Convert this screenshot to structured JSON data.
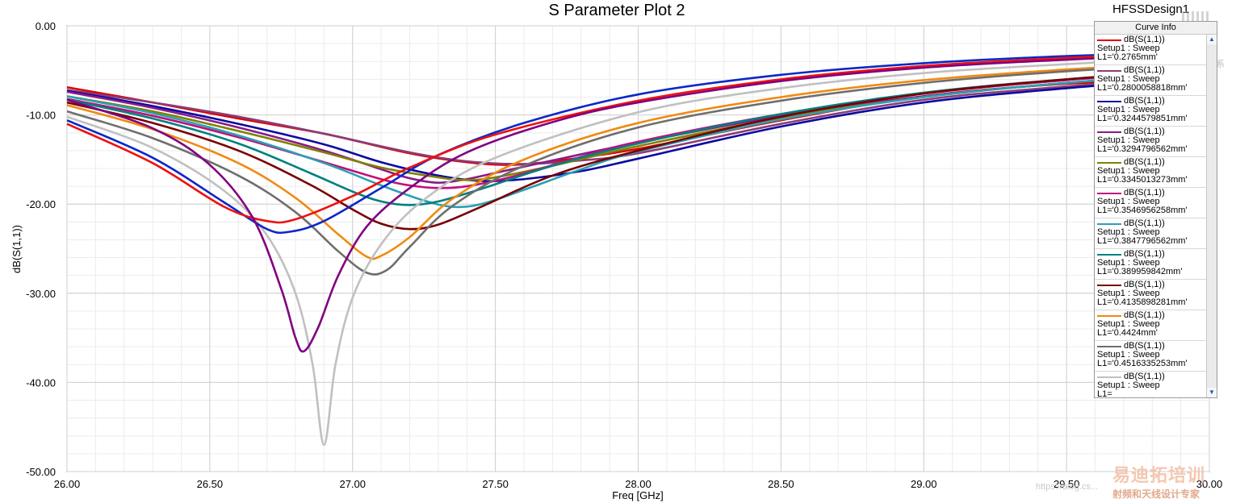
{
  "app": {
    "design_name": "HFSSDesign1"
  },
  "legend": {
    "header": "Curve Info",
    "scroll_up": "▲",
    "scroll_down": "▼"
  },
  "watermarks": {
    "brand_cn": "易迪拓培训",
    "subtitle_cn": "射频和天线设计专家",
    "url": "https://blog.cs...",
    "wechat": "微 信 联 系"
  },
  "chart_data": {
    "type": "line",
    "title": "S Parameter Plot 2",
    "xlabel": "Freq [GHz]",
    "ylabel": "dB(S(1,1))",
    "xlim": [
      26.0,
      30.0
    ],
    "ylim": [
      -50.0,
      0.0
    ],
    "x_ticks": [
      "26.00",
      "26.50",
      "27.00",
      "27.50",
      "28.00",
      "28.50",
      "29.00",
      "29.50",
      "30.00"
    ],
    "y_ticks": [
      "0.00",
      "-10.00",
      "-20.00",
      "-30.00",
      "-40.00",
      "-50.00"
    ],
    "x_tick_values": [
      26.0,
      26.5,
      27.0,
      27.5,
      28.0,
      28.5,
      29.0,
      29.5,
      30.0
    ],
    "y_tick_values": [
      0,
      -10,
      -20,
      -30,
      -40,
      -50
    ],
    "grid": true,
    "legend_position": "top-right",
    "series": [
      {
        "name": "dB(S(1,1))",
        "setup": "Setup1 : Sweep",
        "param": "L1='0.2765mm'",
        "color": "#e00000",
        "points": [
          [
            26.0,
            -6.9
          ],
          [
            26.3,
            -8.6
          ],
          [
            26.6,
            -10.4
          ],
          [
            26.9,
            -12.1
          ],
          [
            27.2,
            -14.3
          ],
          [
            27.4,
            -15.3
          ],
          [
            27.55,
            -15.6
          ],
          [
            27.7,
            -15.2
          ],
          [
            28.0,
            -13.8
          ],
          [
            28.5,
            -10.6
          ],
          [
            29.0,
            -7.9
          ],
          [
            29.5,
            -6.5
          ],
          [
            30.0,
            -5.9
          ]
        ]
      },
      {
        "name": "dB(S(1,1))",
        "setup": "Setup1 : Sweep",
        "param": "L1='0.2800058818mm'",
        "color": "#8c3c78",
        "points": [
          [
            26.0,
            -7.2
          ],
          [
            26.3,
            -8.6
          ],
          [
            26.6,
            -10.2
          ],
          [
            26.9,
            -12.1
          ],
          [
            27.2,
            -14.2
          ],
          [
            27.4,
            -15.2
          ],
          [
            27.6,
            -15.5
          ],
          [
            27.8,
            -15.1
          ],
          [
            28.0,
            -14.3
          ],
          [
            28.5,
            -11.0
          ],
          [
            29.0,
            -8.3
          ],
          [
            29.5,
            -6.8
          ],
          [
            30.0,
            -5.6
          ]
        ]
      },
      {
        "name": "dB(S(1,1))",
        "setup": "Setup1 : Sweep",
        "param": "L1='0.3244579851mm'",
        "color": "#0a0aa0",
        "points": [
          [
            26.0,
            -7.3
          ],
          [
            26.3,
            -9.0
          ],
          [
            26.6,
            -11.0
          ],
          [
            26.9,
            -13.3
          ],
          [
            27.1,
            -15.3
          ],
          [
            27.3,
            -16.8
          ],
          [
            27.45,
            -17.4
          ],
          [
            27.6,
            -17.2
          ],
          [
            27.8,
            -16.3
          ],
          [
            28.0,
            -14.9
          ],
          [
            28.5,
            -11.3
          ],
          [
            29.0,
            -8.6
          ],
          [
            29.5,
            -7.0
          ],
          [
            30.0,
            -5.8
          ]
        ]
      },
      {
        "name": "dB(S(1,1))",
        "setup": "Setup1 : Sweep",
        "param": "L1='0.3294796562mm'",
        "color": "#8a1a8a",
        "points": [
          [
            26.0,
            -7.4
          ],
          [
            26.3,
            -9.2
          ],
          [
            26.6,
            -11.4
          ],
          [
            26.9,
            -14.0
          ],
          [
            27.1,
            -16.1
          ],
          [
            27.2,
            -17.1
          ],
          [
            27.3,
            -17.6
          ],
          [
            27.4,
            -17.2
          ],
          [
            27.5,
            -16.5
          ],
          [
            27.7,
            -15.1
          ],
          [
            28.0,
            -13.1
          ],
          [
            28.5,
            -10.1
          ],
          [
            29.0,
            -7.9
          ],
          [
            29.5,
            -6.4
          ],
          [
            30.0,
            -5.2
          ]
        ]
      },
      {
        "name": "dB(S(1,1))",
        "setup": "Setup1 : Sweep",
        "param": "L1='0.3345013273mm'",
        "color": "#808000",
        "points": [
          [
            26.0,
            -7.9
          ],
          [
            26.3,
            -9.6
          ],
          [
            26.6,
            -11.8
          ],
          [
            26.9,
            -14.2
          ],
          [
            27.1,
            -15.9
          ],
          [
            27.3,
            -17.0
          ],
          [
            27.4,
            -17.3
          ],
          [
            27.5,
            -17.0
          ],
          [
            27.7,
            -15.7
          ],
          [
            28.0,
            -13.5
          ],
          [
            28.5,
            -10.3
          ],
          [
            29.0,
            -8.0
          ],
          [
            29.5,
            -6.4
          ],
          [
            30.0,
            -5.3
          ]
        ]
      },
      {
        "name": "dB(S(1,1))",
        "setup": "Setup1 : Sweep",
        "param": "L1='0.3546956258mm'",
        "color": "#c0107c",
        "points": [
          [
            26.0,
            -8.2
          ],
          [
            26.3,
            -10.1
          ],
          [
            26.6,
            -12.5
          ],
          [
            26.9,
            -15.3
          ],
          [
            27.1,
            -17.2
          ],
          [
            27.2,
            -17.9
          ],
          [
            27.3,
            -18.2
          ],
          [
            27.4,
            -18.0
          ],
          [
            27.55,
            -17.0
          ],
          [
            27.8,
            -14.7
          ],
          [
            28.0,
            -13.0
          ],
          [
            28.5,
            -9.9
          ],
          [
            29.0,
            -7.6
          ],
          [
            29.5,
            -6.1
          ],
          [
            30.0,
            -5.0
          ]
        ]
      },
      {
        "name": "dB(S(1,1))",
        "setup": "Setup1 : Sweep",
        "param": "L1='0.3847796562mm'",
        "color": "#2aa0b4",
        "points": [
          [
            26.0,
            -7.9
          ],
          [
            26.3,
            -9.8
          ],
          [
            26.6,
            -12.3
          ],
          [
            26.9,
            -15.4
          ],
          [
            27.1,
            -17.9
          ],
          [
            27.25,
            -19.6
          ],
          [
            27.35,
            -20.3
          ],
          [
            27.45,
            -20.0
          ],
          [
            27.6,
            -18.4
          ],
          [
            27.8,
            -16.1
          ],
          [
            28.0,
            -14.1
          ],
          [
            28.5,
            -10.5
          ],
          [
            29.0,
            -8.0
          ],
          [
            29.5,
            -6.4
          ],
          [
            30.0,
            -5.2
          ]
        ]
      },
      {
        "name": "dB(S(1,1))",
        "setup": "Setup1 : Sweep",
        "param": "L1='0.389959842mm'",
        "color": "#008080",
        "points": [
          [
            26.0,
            -8.3
          ],
          [
            26.3,
            -10.4
          ],
          [
            26.6,
            -13.2
          ],
          [
            26.85,
            -16.5
          ],
          [
            27.0,
            -18.6
          ],
          [
            27.1,
            -19.7
          ],
          [
            27.2,
            -20.1
          ],
          [
            27.3,
            -19.7
          ],
          [
            27.45,
            -18.3
          ],
          [
            27.7,
            -15.7
          ],
          [
            28.0,
            -13.2
          ],
          [
            28.5,
            -9.9
          ],
          [
            29.0,
            -7.5
          ],
          [
            29.5,
            -6.0
          ],
          [
            30.0,
            -4.9
          ]
        ]
      },
      {
        "name": "dB(S(1,1))",
        "setup": "Setup1 : Sweep",
        "param": "L1='0.4135898281mm'",
        "color": "#780000",
        "points": [
          [
            26.0,
            -8.6
          ],
          [
            26.3,
            -10.9
          ],
          [
            26.6,
            -14.0
          ],
          [
            26.85,
            -17.8
          ],
          [
            27.0,
            -20.6
          ],
          [
            27.1,
            -22.2
          ],
          [
            27.2,
            -22.8
          ],
          [
            27.3,
            -22.3
          ],
          [
            27.45,
            -20.3
          ],
          [
            27.7,
            -16.8
          ],
          [
            28.0,
            -14.0
          ],
          [
            28.5,
            -10.2
          ],
          [
            29.0,
            -7.6
          ],
          [
            29.5,
            -6.0
          ],
          [
            30.0,
            -4.9
          ]
        ]
      },
      {
        "name": "dB(S(1,1))",
        "setup": "Setup1 : Sweep",
        "param": "L1='0.4424mm'",
        "color": "#f08a10",
        "points": [
          [
            26.0,
            -8.9
          ],
          [
            26.3,
            -11.6
          ],
          [
            26.6,
            -15.4
          ],
          [
            26.8,
            -19.3
          ],
          [
            26.95,
            -23.4
          ],
          [
            27.05,
            -25.9
          ],
          [
            27.1,
            -25.8
          ],
          [
            27.2,
            -23.7
          ],
          [
            27.35,
            -19.4
          ],
          [
            27.6,
            -15.0
          ],
          [
            28.0,
            -10.9
          ],
          [
            28.5,
            -8.0
          ],
          [
            29.0,
            -6.1
          ],
          [
            29.5,
            -4.9
          ],
          [
            30.0,
            -4.0
          ]
        ]
      },
      {
        "name": "dB(S(1,1))",
        "setup": "Setup1 : Sweep",
        "param": "L1='0.4516335253mm'",
        "color": "#6e6e6e",
        "points": [
          [
            26.0,
            -9.6
          ],
          [
            26.3,
            -12.6
          ],
          [
            26.6,
            -16.8
          ],
          [
            26.8,
            -20.9
          ],
          [
            26.95,
            -25.3
          ],
          [
            27.05,
            -27.7
          ],
          [
            27.12,
            -27.4
          ],
          [
            27.2,
            -24.8
          ],
          [
            27.35,
            -20.2
          ],
          [
            27.6,
            -15.7
          ],
          [
            28.0,
            -11.4
          ],
          [
            28.5,
            -8.4
          ],
          [
            29.0,
            -6.4
          ],
          [
            29.5,
            -5.1
          ],
          [
            30.0,
            -4.2
          ]
        ]
      },
      {
        "name": "dB(S(1,1))",
        "setup": "Setup1 : Sweep",
        "param": "L1=",
        "color": "#c0c0c0",
        "points": [
          [
            26.0,
            -10.2
          ],
          [
            26.3,
            -13.7
          ],
          [
            26.55,
            -18.5
          ],
          [
            26.7,
            -23.5
          ],
          [
            26.8,
            -30.0
          ],
          [
            26.86,
            -38.0
          ],
          [
            26.9,
            -47.0
          ],
          [
            26.94,
            -38.0
          ],
          [
            27.0,
            -30.5
          ],
          [
            27.1,
            -24.5
          ],
          [
            27.25,
            -19.5
          ],
          [
            27.5,
            -14.8
          ],
          [
            28.0,
            -9.7
          ],
          [
            28.5,
            -7.0
          ],
          [
            29.0,
            -5.3
          ],
          [
            29.5,
            -4.3
          ],
          [
            30.0,
            -3.5
          ]
        ]
      },
      {
        "name": "dB(S(1,1))",
        "setup": "Setup1 : Sweep",
        "param": "L1=",
        "color": "#0a28c8",
        "points": [
          [
            26.0,
            -10.6
          ],
          [
            26.3,
            -14.8
          ],
          [
            26.55,
            -19.8
          ],
          [
            26.7,
            -22.8
          ],
          [
            26.78,
            -23.1
          ],
          [
            26.9,
            -21.9
          ],
          [
            27.1,
            -18.2
          ],
          [
            27.3,
            -14.5
          ],
          [
            27.6,
            -10.9
          ],
          [
            28.0,
            -7.7
          ],
          [
            28.5,
            -5.5
          ],
          [
            29.0,
            -4.2
          ],
          [
            29.5,
            -3.4
          ],
          [
            30.0,
            -2.9
          ]
        ]
      },
      {
        "name": "dB(S(1,1))",
        "setup": "Setup1 : Sweep",
        "param": "L1=",
        "color": "#ee1010",
        "points": [
          [
            26.0,
            -11.0
          ],
          [
            26.3,
            -15.4
          ],
          [
            26.55,
            -20.3
          ],
          [
            26.7,
            -21.9
          ],
          [
            26.8,
            -21.7
          ],
          [
            27.0,
            -19.1
          ],
          [
            27.2,
            -15.9
          ],
          [
            27.5,
            -12.2
          ],
          [
            28.0,
            -8.4
          ],
          [
            28.5,
            -6.0
          ],
          [
            29.0,
            -4.5
          ],
          [
            29.5,
            -3.6
          ],
          [
            30.0,
            -3.0
          ]
        ]
      },
      {
        "name": "dB(S(1,1))",
        "setup": "Setup1 : Sweep",
        "param": "L1=",
        "color": "#800080",
        "points": [
          [
            26.0,
            -8.3
          ],
          [
            26.3,
            -11.5
          ],
          [
            26.5,
            -15.6
          ],
          [
            26.65,
            -21.5
          ],
          [
            26.75,
            -29.5
          ],
          [
            26.8,
            -35.0
          ],
          [
            26.83,
            -36.5
          ],
          [
            26.88,
            -33.8
          ],
          [
            26.95,
            -28.0
          ],
          [
            27.05,
            -22.5
          ],
          [
            27.2,
            -18.2
          ],
          [
            27.4,
            -14.2
          ],
          [
            27.7,
            -10.8
          ],
          [
            28.0,
            -8.6
          ],
          [
            28.5,
            -6.2
          ],
          [
            29.0,
            -4.7
          ],
          [
            29.5,
            -3.8
          ],
          [
            30.0,
            -3.1
          ]
        ]
      }
    ]
  }
}
